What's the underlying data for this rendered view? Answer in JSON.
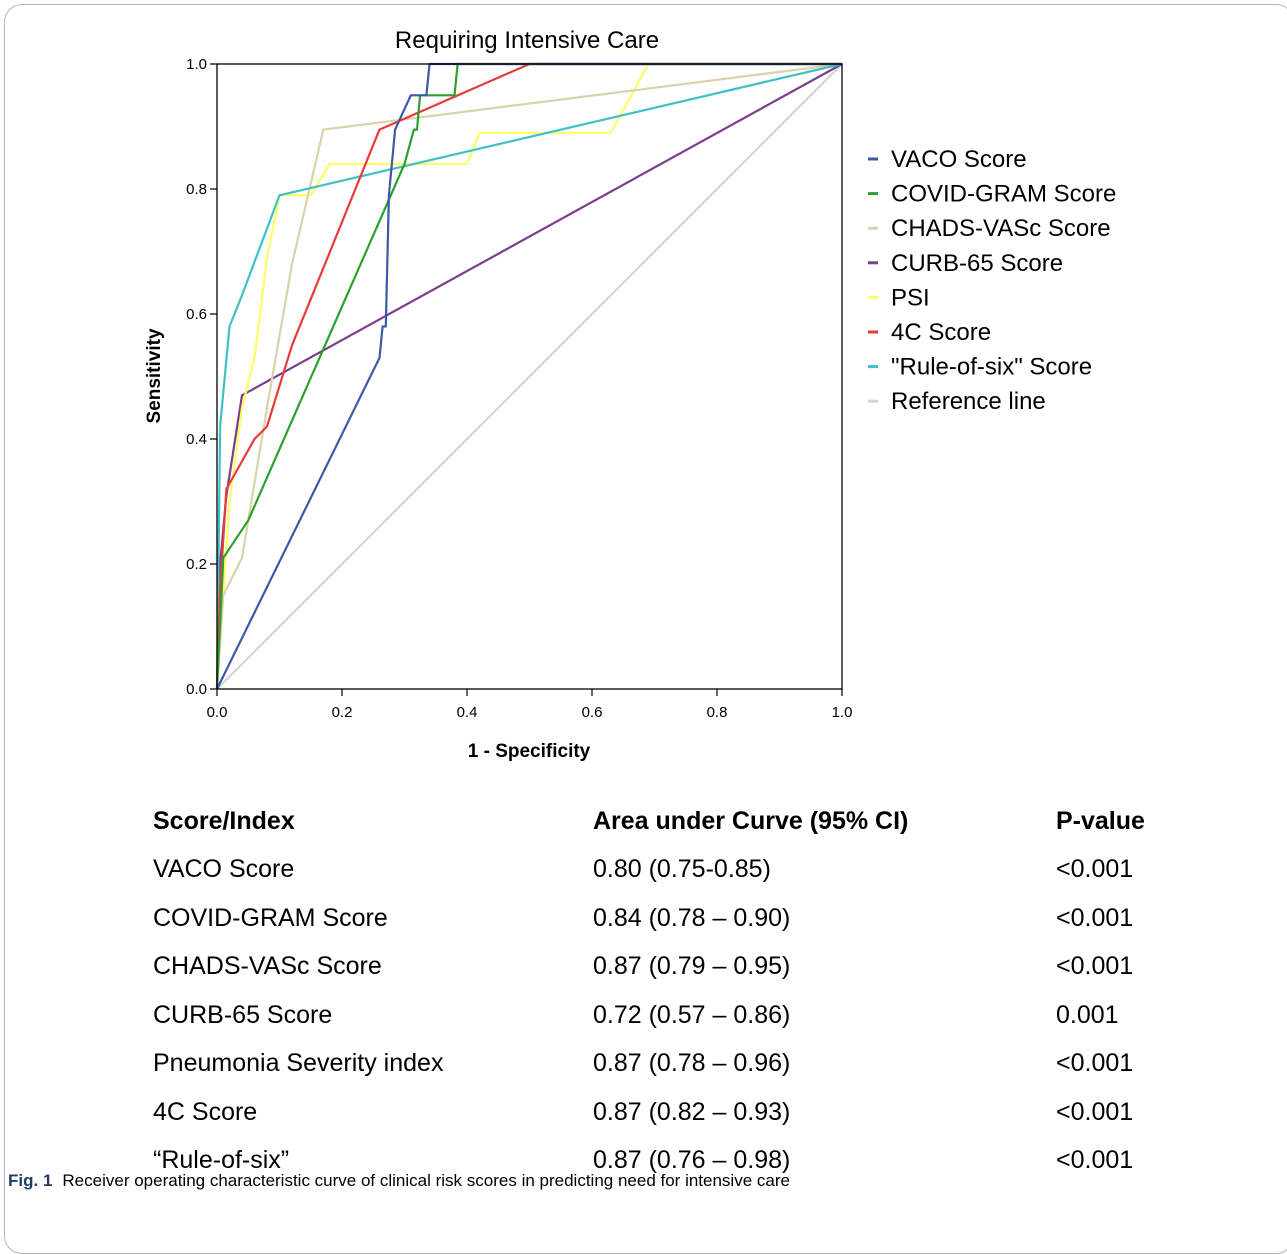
{
  "chart_data": {
    "type": "line",
    "title": "Requiring Intensive Care",
    "xlabel": "1 - Specificity",
    "ylabel": "Sensitivity",
    "xlim": [
      0,
      1
    ],
    "ylim": [
      0,
      1
    ],
    "x_ticks": [
      "0.0",
      "0.2",
      "0.4",
      "0.6",
      "0.8",
      "1.0"
    ],
    "y_ticks": [
      "0.0",
      "0.2",
      "0.4",
      "0.6",
      "0.8",
      "1.0"
    ],
    "grid": false,
    "legend_position": "right",
    "series": [
      {
        "name": "Reference line",
        "color": "#d4d4d4",
        "points": [
          [
            0,
            0
          ],
          [
            1,
            1
          ]
        ]
      },
      {
        "name": "CURB-65 Score",
        "color": "#7b3d8f",
        "points": [
          [
            0,
            0
          ],
          [
            0.005,
            0.2
          ],
          [
            0.015,
            0.31
          ],
          [
            0.04,
            0.47
          ],
          [
            1,
            1
          ]
        ]
      },
      {
        "name": "PSI",
        "color": "#ffff66",
        "points": [
          [
            0,
            0
          ],
          [
            0.01,
            0.15
          ],
          [
            0.02,
            0.3
          ],
          [
            0.04,
            0.45
          ],
          [
            0.06,
            0.53
          ],
          [
            0.08,
            0.69
          ],
          [
            0.1,
            0.79
          ],
          [
            0.15,
            0.79
          ],
          [
            0.18,
            0.84
          ],
          [
            0.26,
            0.84
          ],
          [
            0.4,
            0.84
          ],
          [
            0.42,
            0.89
          ],
          [
            0.6,
            0.89
          ],
          [
            0.63,
            0.89
          ],
          [
            0.69,
            1
          ],
          [
            1,
            1
          ]
        ]
      },
      {
        "name": "CHADS-VASc Score",
        "color": "#d9d3a8",
        "points": [
          [
            0,
            0
          ],
          [
            0.01,
            0.15
          ],
          [
            0.04,
            0.21
          ],
          [
            0.08,
            0.45
          ],
          [
            0.12,
            0.68
          ],
          [
            0.17,
            0.895
          ],
          [
            1,
            1
          ]
        ]
      },
      {
        "name": "\"Rule-of-six\" Score",
        "color": "#3ec1c6",
        "points": [
          [
            0,
            0
          ],
          [
            0.005,
            0.42
          ],
          [
            0.02,
            0.58
          ],
          [
            0.04,
            0.63
          ],
          [
            0.1,
            0.79
          ],
          [
            1,
            1
          ]
        ]
      },
      {
        "name": "4C Score",
        "color": "#e83a3a",
        "points": [
          [
            0,
            0
          ],
          [
            0.005,
            0.16
          ],
          [
            0.015,
            0.32
          ],
          [
            0.06,
            0.4
          ],
          [
            0.08,
            0.42
          ],
          [
            0.12,
            0.55
          ],
          [
            0.26,
            0.895
          ],
          [
            0.5,
            1
          ],
          [
            1,
            1
          ]
        ]
      },
      {
        "name": "COVID-GRAM Score",
        "color": "#2ca02c",
        "points": [
          [
            0,
            0
          ],
          [
            0.01,
            0.21
          ],
          [
            0.05,
            0.27
          ],
          [
            0.3,
            0.84
          ],
          [
            0.315,
            0.895
          ],
          [
            0.32,
            0.895
          ],
          [
            0.325,
            0.95
          ],
          [
            0.38,
            0.95
          ],
          [
            0.385,
            1
          ],
          [
            1,
            1
          ]
        ]
      },
      {
        "name": "VACO Score",
        "color": "#3b5aa6",
        "points": [
          [
            0,
            0
          ],
          [
            0.26,
            0.53
          ],
          [
            0.265,
            0.58
          ],
          [
            0.27,
            0.58
          ],
          [
            0.275,
            0.79
          ],
          [
            0.285,
            0.895
          ],
          [
            0.31,
            0.95
          ],
          [
            0.335,
            0.95
          ],
          [
            0.34,
            1
          ],
          [
            1,
            1
          ]
        ]
      }
    ],
    "legend_order": [
      "VACO Score",
      "COVID-GRAM Score",
      "CHADS-VASc Score",
      "CURB-65 Score",
      "PSI",
      "4C Score",
      "\"Rule-of-six\" Score",
      "Reference line"
    ]
  },
  "table": {
    "headers": [
      "Score/Index",
      "Area under Curve (95% CI)",
      "P-value"
    ],
    "rows": [
      [
        "VACO Score",
        "0.80 (0.75-0.85)",
        "<0.001"
      ],
      [
        "COVID-GRAM Score",
        "0.84 (0.78 – 0.90)",
        "<0.001"
      ],
      [
        "CHADS-VASc Score",
        "0.87 (0.79 – 0.95)",
        "<0.001"
      ],
      [
        "CURB-65 Score",
        "0.72 (0.57 – 0.86)",
        "0.001"
      ],
      [
        "Pneumonia Severity index",
        "0.87 (0.78 – 0.96)",
        "<0.001"
      ],
      [
        "4C Score",
        "0.87 (0.82 – 0.93)",
        "<0.001"
      ],
      [
        "“Rule-of-six”",
        "0.87 (0.76 – 0.98)",
        "<0.001"
      ]
    ]
  },
  "caption": {
    "label": "Fig. 1",
    "text": "Receiver operating characteristic curve of clinical risk scores in predicting need for intensive care"
  }
}
